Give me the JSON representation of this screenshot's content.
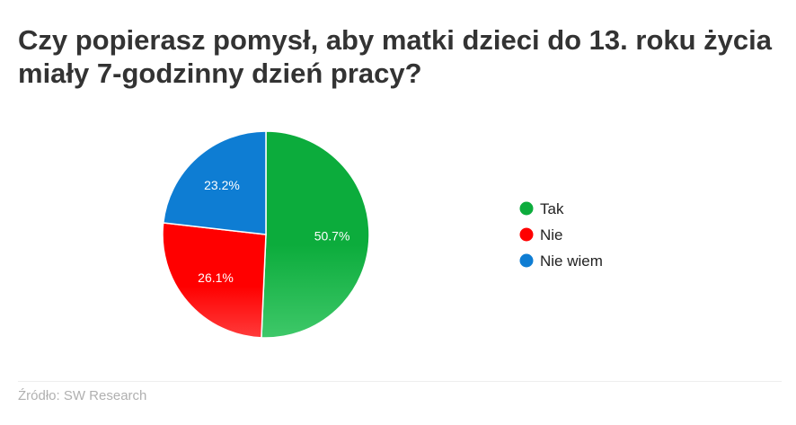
{
  "title_lines": [
    "Czy popierasz pomysł, aby matki dzieci do 13. roku życia",
    "miały 7-godzinny dzień pracy?"
  ],
  "source": "Źródło: SW Research",
  "chart_data": {
    "type": "pie",
    "title": "Czy popierasz pomysł, aby matki dzieci do 13. roku życia miały 7-godzinny dzień pracy?",
    "legend_position": "right",
    "slices": [
      {
        "name": "Tak",
        "value": 50.7,
        "label": "50.7%",
        "color": "#0cac3c"
      },
      {
        "name": "Nie",
        "value": 26.1,
        "label": "26.1%",
        "color": "#ff0000"
      },
      {
        "name": "Nie wiem",
        "value": 23.2,
        "label": "23.2%",
        "color": "#0e7dd3"
      }
    ]
  }
}
